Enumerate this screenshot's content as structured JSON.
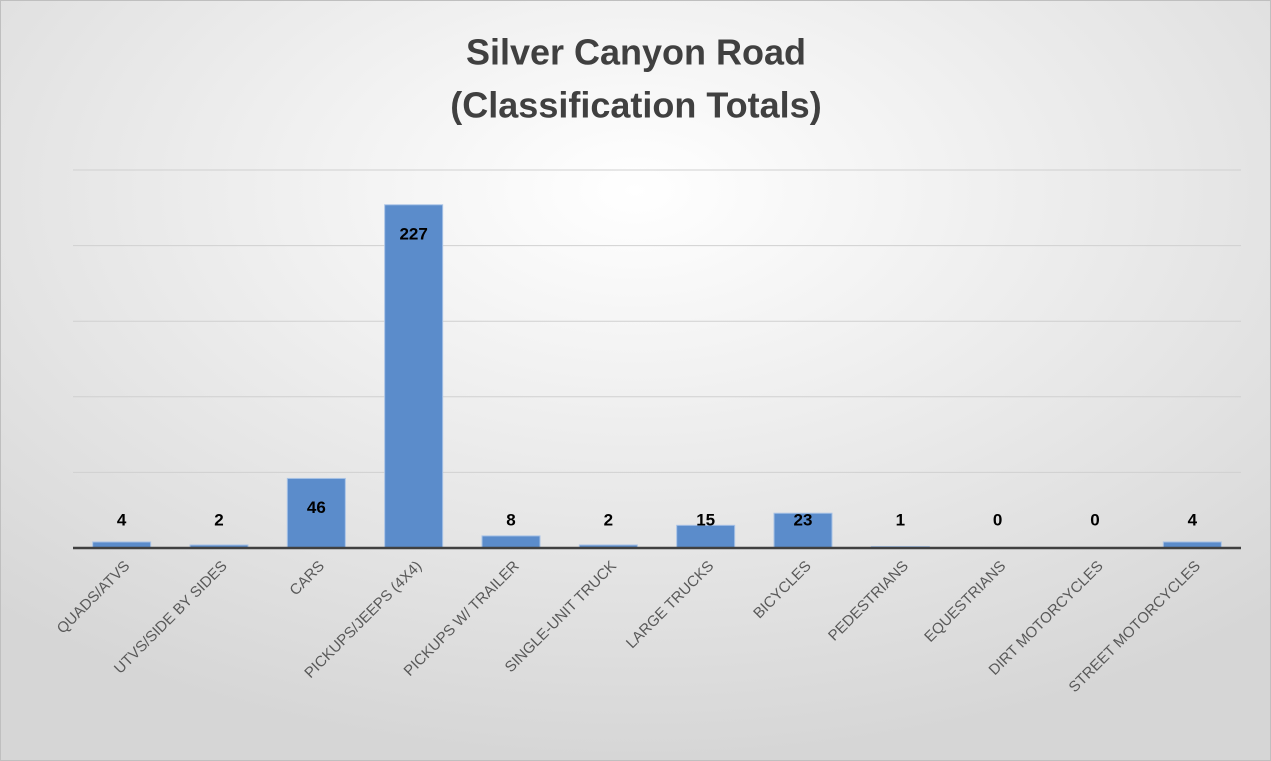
{
  "chart_data": {
    "type": "bar",
    "title": [
      "Silver Canyon Road",
      "(Classification Totals)"
    ],
    "categories": [
      "QUADS/ATVS",
      "UTVS/SIDE BY SIDES",
      "CARS",
      "PICKUPS/JEEPS (4X4)",
      "PICKUPS W/ TRAILER",
      "SINGLE-UNIT TRUCK",
      "LARGE TRUCKS",
      "BICYCLES",
      "PEDESTRIANS",
      "EQUESTRIANS",
      "DIRT MOTORCYCLES",
      "STREET MOTORCYCLES"
    ],
    "values": [
      4,
      2,
      46,
      227,
      8,
      2,
      15,
      23,
      1,
      0,
      0,
      4
    ],
    "color": "#5b8ccb",
    "ylim": [
      0,
      250
    ],
    "yticks": [
      0,
      50,
      100,
      150,
      200,
      250
    ],
    "grid": true
  }
}
